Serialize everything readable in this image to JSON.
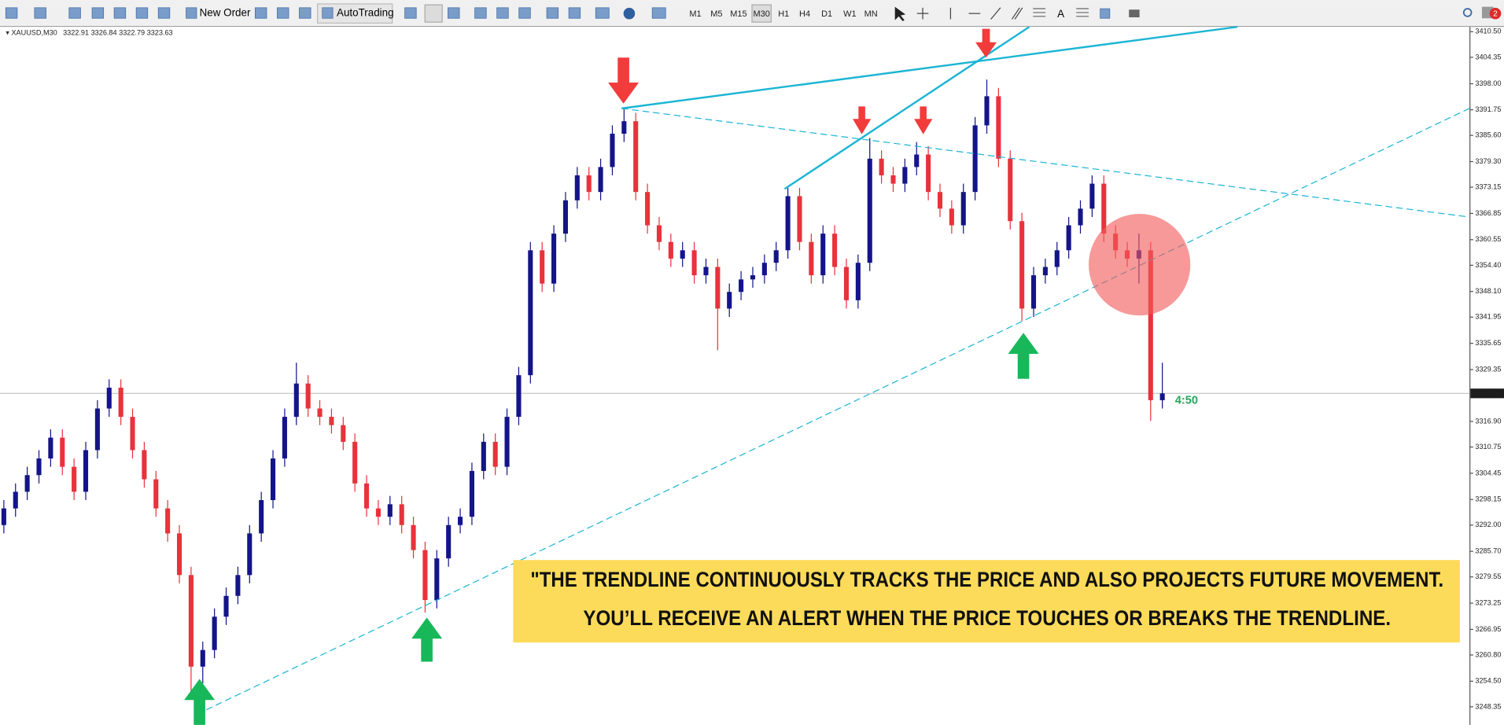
{
  "toolbar": {
    "new_order": "New Order",
    "auto_trading": "AutoTrading",
    "timeframes": [
      "M1",
      "M5",
      "M15",
      "M30",
      "H1",
      "H4",
      "D1",
      "W1",
      "MN"
    ],
    "text_tool": "A",
    "notifications": "2"
  },
  "chart_data": {
    "type": "candlestick",
    "title": "XAUUSD,M30",
    "quote": "3322.91 3326.84 3322.79 3323.63",
    "timer": "4:50",
    "current_price": {
      "value": 3323.63,
      "label": "3323.63"
    },
    "up_color": "#14148a",
    "down_color": "#e8323c",
    "annotation": [
      "\"THE TRENDLINE CONTINUOUSLY TRACKS THE PRICE AND ALSO PROJECTS FUTURE MOVEMENT.",
      "YOU’LL RECEIVE AN ALERT WHEN THE PRICE TOUCHES OR BREAKS THE TRENDLINE."
    ],
    "ylim": [
      3244.0,
      3411.65
    ],
    "yticks": [
      {
        "value": 3410.5,
        "label": "3410.50"
      },
      {
        "value": 3404.35,
        "label": "3404.35"
      },
      {
        "value": 3398.0,
        "label": "3398.00"
      },
      {
        "value": 3391.75,
        "label": "3391.75"
      },
      {
        "value": 3385.6,
        "label": "3385.60"
      },
      {
        "value": 3379.3,
        "label": "3379.30"
      },
      {
        "value": 3373.15,
        "label": "3373.15"
      },
      {
        "value": 3366.85,
        "label": "3366.85"
      },
      {
        "value": 3360.55,
        "label": "3360.55"
      },
      {
        "value": 3354.4,
        "label": "3354.40"
      },
      {
        "value": 3348.1,
        "label": "3348.10"
      },
      {
        "value": 3341.95,
        "label": "3341.95"
      },
      {
        "value": 3335.65,
        "label": "3335.65"
      },
      {
        "value": 3329.35,
        "label": "3329.35"
      },
      {
        "value": 3316.9,
        "label": "3316.90"
      },
      {
        "value": 3310.75,
        "label": "3310.75"
      },
      {
        "value": 3304.45,
        "label": "3304.45"
      },
      {
        "value": 3298.15,
        "label": "3298.15"
      },
      {
        "value": 3292.0,
        "label": "3292.00"
      },
      {
        "value": 3285.7,
        "label": "3285.70"
      },
      {
        "value": 3279.55,
        "label": "3279.55"
      },
      {
        "value": 3273.25,
        "label": "3273.25"
      },
      {
        "value": 3266.95,
        "label": "3266.95"
      },
      {
        "value": 3260.8,
        "label": "3260.80"
      },
      {
        "value": 3254.5,
        "label": "3254.50"
      },
      {
        "value": 3248.35,
        "label": "3248.35"
      }
    ],
    "series": {
      "open": [
        3292,
        3296,
        3300,
        3304,
        3308,
        3313,
        3306,
        3300,
        3310,
        3320,
        3325,
        3318,
        3310,
        3303,
        3296,
        3290,
        3280,
        3258,
        3262,
        3270,
        3275,
        3280,
        3290,
        3298,
        3308,
        3318,
        3326,
        3320,
        3318,
        3316,
        3312,
        3302,
        3296,
        3294,
        3297,
        3292,
        3286,
        3274,
        3284,
        3292,
        3294,
        3305,
        3312,
        3306,
        3318,
        3328,
        3358,
        3350,
        3362,
        3370,
        3376,
        3372,
        3378,
        3386,
        3389,
        3372,
        3364,
        3360,
        3356,
        3358,
        3352,
        3354,
        3344,
        3348,
        3351,
        3352,
        3355,
        3358,
        3371,
        3360,
        3352,
        3362,
        3354,
        3346,
        3355,
        3380,
        3376,
        3374,
        3378,
        3381,
        3372,
        3368,
        3364,
        3372,
        3388,
        3395,
        3380,
        3365,
        3344,
        3352,
        3354,
        3358,
        3364,
        3368,
        3374,
        3362,
        3358,
        3356,
        3358,
        3322
      ],
      "high": [
        3298,
        3302,
        3306,
        3310,
        3315,
        3315,
        3308,
        3312,
        3322,
        3327,
        3327,
        3320,
        3312,
        3305,
        3298,
        3292,
        3282,
        3264,
        3272,
        3277,
        3282,
        3292,
        3300,
        3310,
        3320,
        3331,
        3328,
        3322,
        3320,
        3318,
        3314,
        3304,
        3298,
        3299,
        3299,
        3294,
        3288,
        3286,
        3294,
        3296,
        3307,
        3314,
        3314,
        3320,
        3330,
        3360,
        3360,
        3364,
        3372,
        3378,
        3378,
        3380,
        3388,
        3392,
        3391,
        3374,
        3366,
        3362,
        3360,
        3360,
        3356,
        3356,
        3350,
        3353,
        3354,
        3357,
        3360,
        3373,
        3373,
        3362,
        3364,
        3364,
        3356,
        3357,
        3385,
        3382,
        3378,
        3380,
        3384,
        3383,
        3374,
        3370,
        3374,
        3390,
        3399,
        3397,
        3382,
        3367,
        3354,
        3356,
        3360,
        3366,
        3370,
        3376,
        3376,
        3364,
        3360,
        3362,
        3360,
        3331
      ],
      "low": [
        3290,
        3294,
        3298,
        3302,
        3306,
        3304,
        3298,
        3298,
        3308,
        3318,
        3316,
        3308,
        3301,
        3294,
        3288,
        3278,
        3252,
        3254,
        3260,
        3268,
        3273,
        3278,
        3288,
        3296,
        3306,
        3316,
        3318,
        3316,
        3314,
        3310,
        3300,
        3294,
        3292,
        3292,
        3290,
        3284,
        3271,
        3272,
        3282,
        3290,
        3292,
        3303,
        3304,
        3304,
        3316,
        3326,
        3348,
        3348,
        3360,
        3368,
        3370,
        3370,
        3376,
        3384,
        3370,
        3362,
        3358,
        3354,
        3354,
        3350,
        3350,
        3334,
        3342,
        3346,
        3349,
        3350,
        3353,
        3356,
        3358,
        3350,
        3350,
        3352,
        3344,
        3344,
        3353,
        3374,
        3372,
        3372,
        3376,
        3370,
        3366,
        3362,
        3362,
        3370,
        3386,
        3378,
        3363,
        3341,
        3342,
        3350,
        3352,
        3356,
        3362,
        3366,
        3360,
        3356,
        3354,
        3350,
        3317,
        3320
      ],
      "close": [
        3296,
        3300,
        3304,
        3308,
        3313,
        3306,
        3300,
        3310,
        3320,
        3325,
        3318,
        3310,
        3303,
        3296,
        3290,
        3280,
        3258,
        3262,
        3270,
        3275,
        3280,
        3290,
        3298,
        3308,
        3318,
        3326,
        3320,
        3318,
        3316,
        3312,
        3302,
        3296,
        3294,
        3297,
        3292,
        3286,
        3274,
        3284,
        3292,
        3294,
        3305,
        3312,
        3306,
        3318,
        3328,
        3358,
        3350,
        3362,
        3370,
        3376,
        3372,
        3378,
        3386,
        3389,
        3372,
        3364,
        3360,
        3356,
        3358,
        3352,
        3354,
        3344,
        3348,
        3351,
        3352,
        3355,
        3358,
        3371,
        3360,
        3352,
        3362,
        3354,
        3346,
        3355,
        3380,
        3376,
        3374,
        3378,
        3381,
        3372,
        3368,
        3364,
        3372,
        3388,
        3395,
        3380,
        3365,
        3344,
        3352,
        3354,
        3358,
        3364,
        3368,
        3374,
        3362,
        3358,
        3356,
        3358,
        3322,
        3323.63
      ]
    }
  }
}
